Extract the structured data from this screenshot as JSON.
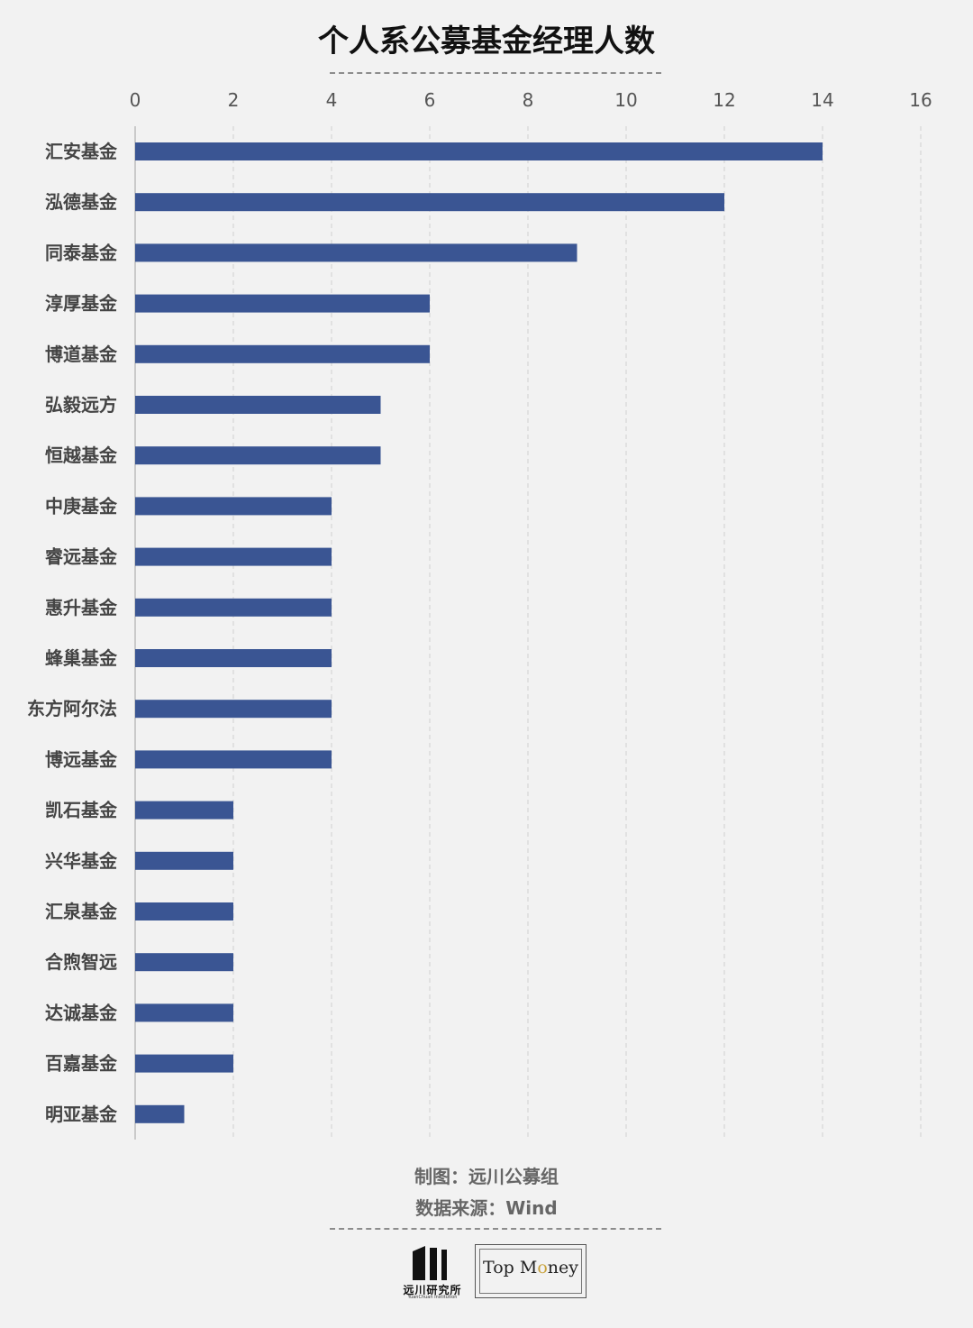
{
  "header": {
    "title": "个人系公募基金经理人数"
  },
  "footer": {
    "credit": "制图：远川公募组",
    "source": "数据来源：Wind"
  },
  "logos": {
    "yuanchuan_name": "远川研究所",
    "yuanchuan_sub": "YuanChuan Institution",
    "topmoney_pre": "Top M",
    "topmoney_o": "o",
    "topmoney_post": "ney"
  },
  "colors": {
    "bar": "#3a5593",
    "grid": "#d0d0d0",
    "background": "#f2f2f2"
  },
  "chart_data": {
    "type": "bar",
    "orientation": "horizontal",
    "title": "个人系公募基金经理人数",
    "xlim": [
      0,
      16
    ],
    "xticks": [
      0,
      2,
      4,
      6,
      8,
      10,
      12,
      14,
      16
    ],
    "axis_position": "top",
    "grid": true,
    "categories": [
      "汇安基金",
      "泓德基金",
      "同泰基金",
      "淳厚基金",
      "博道基金",
      "弘毅远方",
      "恒越基金",
      "中庚基金",
      "睿远基金",
      "惠升基金",
      "蜂巢基金",
      "东方阿尔法",
      "博远基金",
      "凯石基金",
      "兴华基金",
      "汇泉基金",
      "合煦智远",
      "达诚基金",
      "百嘉基金",
      "明亚基金"
    ],
    "values": [
      14,
      12,
      9,
      6,
      6,
      5,
      5,
      4,
      4,
      4,
      4,
      4,
      4,
      2,
      2,
      2,
      2,
      2,
      2,
      1
    ]
  }
}
